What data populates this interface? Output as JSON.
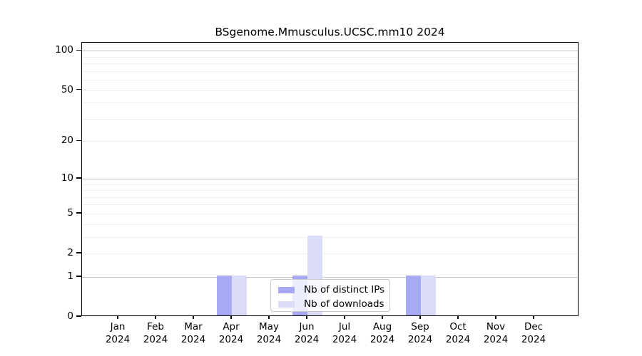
{
  "chart_data": {
    "type": "bar",
    "title": "BSgenome.Mmusculus.UCSC.mm10 2024",
    "categories": [
      {
        "month": "Jan",
        "year": "2024"
      },
      {
        "month": "Feb",
        "year": "2024"
      },
      {
        "month": "Mar",
        "year": "2024"
      },
      {
        "month": "Apr",
        "year": "2024"
      },
      {
        "month": "May",
        "year": "2024"
      },
      {
        "month": "Jun",
        "year": "2024"
      },
      {
        "month": "Jul",
        "year": "2024"
      },
      {
        "month": "Aug",
        "year": "2024"
      },
      {
        "month": "Sep",
        "year": "2024"
      },
      {
        "month": "Oct",
        "year": "2024"
      },
      {
        "month": "Nov",
        "year": "2024"
      },
      {
        "month": "Dec",
        "year": "2024"
      }
    ],
    "series": [
      {
        "name": "Nb of distinct IPs",
        "color": "#a7aaf2",
        "values": [
          0,
          0,
          0,
          1,
          0,
          1,
          0,
          0,
          1,
          0,
          0,
          0
        ]
      },
      {
        "name": "Nb of downloads",
        "color": "#dadcf8",
        "values": [
          0,
          0,
          0,
          1,
          0,
          3,
          0,
          0,
          1,
          0,
          0,
          0
        ]
      }
    ],
    "y_ticks": [
      0,
      1,
      2,
      5,
      10,
      20,
      50,
      100
    ],
    "ylim": [
      0,
      115
    ],
    "scale": "log1p",
    "grid": true,
    "legend_position": "bottom-center-inside",
    "colors": {
      "grid_major": "#c6c6c6",
      "grid_minor": "#ededed",
      "frame": "#000000",
      "background": "#ffffff"
    }
  }
}
